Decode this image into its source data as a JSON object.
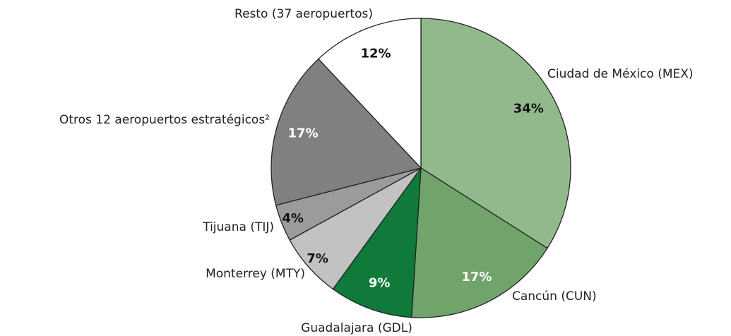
{
  "chart_data": {
    "type": "pie",
    "categories": [
      "Ciudad de México (MEX)",
      "Cancún (CUN)",
      "Guadalajara (GDL)",
      "Monterrey (MTY)",
      "Tijuana (TIJ)",
      "Otros 12 aeropuertos estratégicos²",
      "Resto (37 aeropuertos)"
    ],
    "values": [
      34,
      17,
      9,
      7,
      4,
      17,
      12
    ],
    "value_labels": [
      "34%",
      "17%",
      "9%",
      "7%",
      "4%",
      "17%",
      "12%"
    ],
    "colors": [
      "#92b98c",
      "#70a46b",
      "#0f7a3a",
      "#c2c2c2",
      "#9b9b9b",
      "#808080",
      "#ffffff"
    ]
  }
}
